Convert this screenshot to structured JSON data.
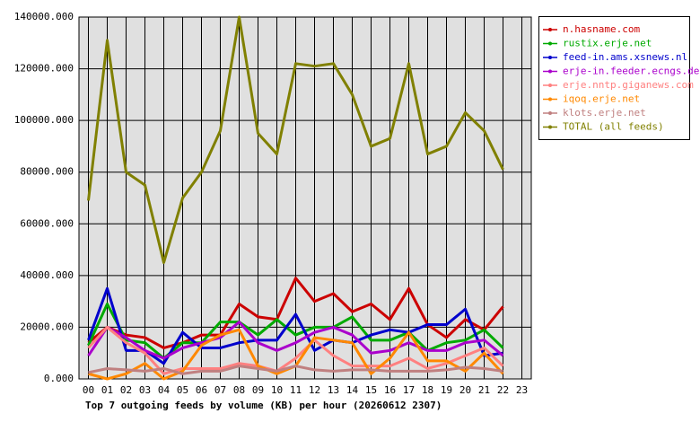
{
  "chart_data": {
    "type": "line",
    "title": "Top 7 outgoing feeds by volume (KB) per hour (20260612 2307)",
    "categories": [
      "00",
      "01",
      "02",
      "03",
      "04",
      "05",
      "06",
      "07",
      "08",
      "09",
      "10",
      "11",
      "12",
      "13",
      "14",
      "15",
      "16",
      "17",
      "18",
      "19",
      "20",
      "21",
      "22",
      "23"
    ],
    "ylim": [
      0,
      140000
    ],
    "yticks": [
      {
        "value": 0,
        "label": "0.000"
      },
      {
        "value": 20000,
        "label": "20000.000"
      },
      {
        "value": 40000,
        "label": "40000.000"
      },
      {
        "value": 60000,
        "label": "60000.000"
      },
      {
        "value": 80000,
        "label": "80000.000"
      },
      {
        "value": 100000,
        "label": "100000.000"
      },
      {
        "value": 120000,
        "label": "120000.000"
      },
      {
        "value": 140000,
        "label": "140000.000"
      }
    ],
    "grid": true,
    "legend": "right",
    "series": [
      {
        "name": "n.hasname.com",
        "color": "#cc0000",
        "values": [
          14000,
          20000,
          17000,
          16000,
          12000,
          14000,
          17000,
          17000,
          29000,
          24000,
          23000,
          39000,
          30000,
          33000,
          26000,
          29000,
          23000,
          35000,
          21000,
          16000,
          23000,
          19000,
          28000,
          null
        ]
      },
      {
        "name": "rustix.erje.net",
        "color": "#00aa00",
        "values": [
          13000,
          29000,
          15000,
          14000,
          8000,
          14000,
          14000,
          22000,
          22000,
          17000,
          23000,
          17000,
          20000,
          20000,
          24000,
          15000,
          15000,
          18000,
          11000,
          14000,
          15000,
          19000,
          12000,
          null
        ]
      },
      {
        "name": "feed-in.ams.xsnews.nl",
        "color": "#0000cc",
        "values": [
          15000,
          35000,
          11000,
          11000,
          6000,
          18000,
          12000,
          12000,
          14000,
          15000,
          15000,
          25000,
          11000,
          15000,
          14000,
          17000,
          19000,
          18000,
          21000,
          21000,
          27000,
          9000,
          10000,
          null
        ]
      },
      {
        "name": "erje-in.feeder.ecngs.de",
        "color": "#aa00cc",
        "values": [
          9000,
          20000,
          16000,
          11000,
          8000,
          12000,
          14000,
          16000,
          22000,
          14000,
          11000,
          14000,
          18000,
          20000,
          17000,
          10000,
          11000,
          14000,
          11000,
          11000,
          14000,
          15000,
          9000,
          null
        ]
      },
      {
        "name": "erje.nntp.giganews.com",
        "color": "#ff8080",
        "values": [
          12000,
          20000,
          14000,
          10000,
          2000,
          4000,
          4000,
          4000,
          6000,
          5000,
          3000,
          8000,
          15000,
          9000,
          5000,
          5000,
          5000,
          8000,
          4000,
          6000,
          9000,
          12000,
          5000,
          null
        ]
      },
      {
        "name": "iqoq.erje.net",
        "color": "#ff8800",
        "values": [
          2000,
          0,
          2000,
          6000,
          0,
          3000,
          13000,
          17000,
          19000,
          5000,
          2000,
          5000,
          16000,
          15000,
          14000,
          2000,
          8000,
          18000,
          7000,
          7000,
          3000,
          10000,
          2000,
          null
        ]
      },
      {
        "name": "klots.erje.net",
        "color": "#c08080",
        "values": [
          2500,
          4000,
          3500,
          3000,
          4000,
          2000,
          3000,
          3000,
          5000,
          4000,
          3000,
          5000,
          3500,
          3000,
          3500,
          3500,
          3000,
          3000,
          3000,
          3500,
          4500,
          4000,
          3000,
          null
        ]
      },
      {
        "name": "TOTAL (all feeds)",
        "color": "#808000",
        "values": [
          69000,
          131000,
          80000,
          75000,
          45000,
          70000,
          80000,
          96000,
          140000,
          95000,
          87000,
          122000,
          121000,
          122000,
          110000,
          90000,
          93000,
          122000,
          87000,
          90000,
          103000,
          96000,
          81000,
          null
        ]
      }
    ]
  }
}
